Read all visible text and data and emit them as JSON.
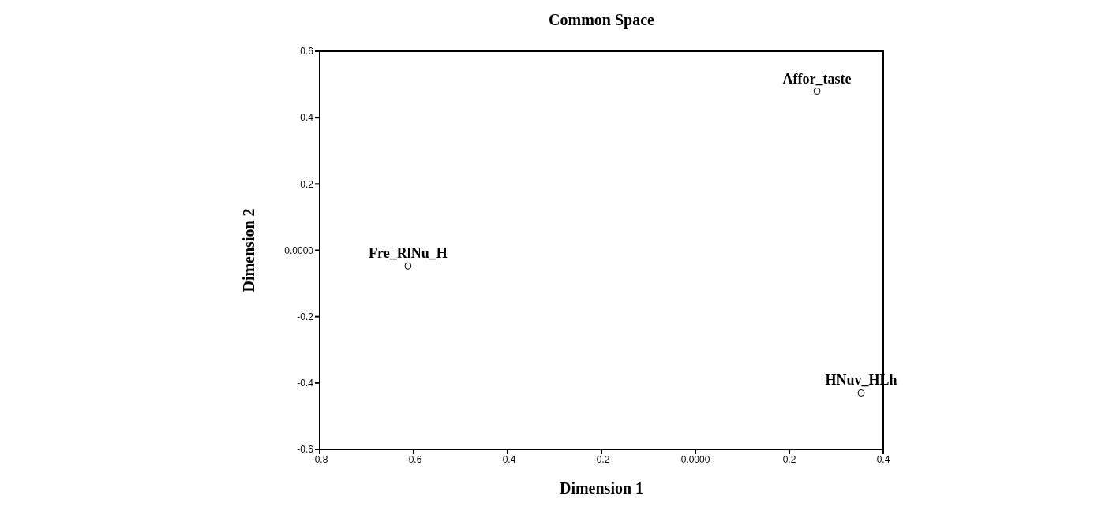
{
  "chart_data": {
    "type": "scatter",
    "title": "Common Space",
    "xlabel": "Dimension 1",
    "ylabel": "Dimension 2",
    "series": [
      {
        "color": "#000000",
        "x": [
          0.259,
          -0.612,
          0.353
        ],
        "values": [
          0.48,
          -0.047,
          -0.43
        ]
      }
    ],
    "annotations": [
      {
        "text": "Affor_taste",
        "x": 0.259,
        "y": 0.48
      },
      {
        "text": "Fre_RlNu_H",
        "x": -0.612,
        "y": -0.047
      },
      {
        "text": "HNuv_HLh",
        "x": 0.353,
        "y": -0.43
      }
    ],
    "xlim": [
      -0.8,
      0.4
    ],
    "xticks": [
      -0.8,
      -0.6,
      -0.4,
      -0.2,
      {
        "value": 0,
        "label": "0.0000"
      },
      0.2,
      0.4
    ],
    "ylim": [
      -0.6,
      0.6
    ],
    "yticks": [
      -0.6,
      -0.4,
      -0.2,
      {
        "value": 0,
        "label": "0.0000"
      },
      0.2,
      0.4,
      0.6
    ],
    "marker": "circle",
    "grid": false,
    "legend": false
  }
}
